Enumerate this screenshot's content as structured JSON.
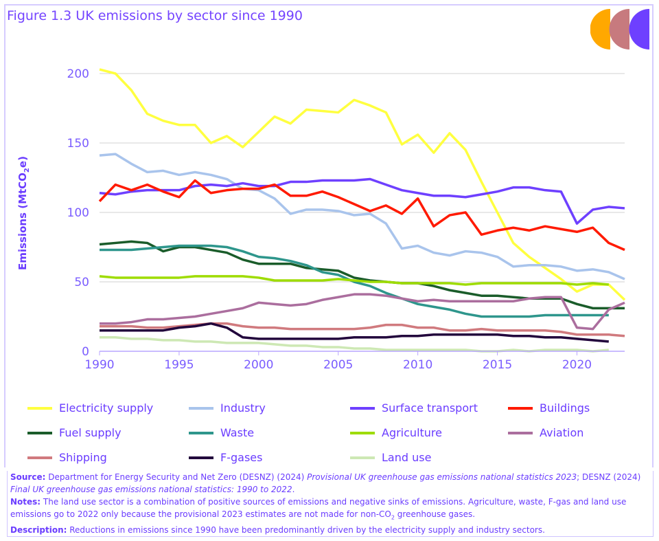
{
  "title": "Figure 1.3 UK emissions by sector since 1990",
  "logo": {
    "colors": [
      "#ffa800",
      "#c77a7e",
      "#6e40ff"
    ]
  },
  "chart_data": {
    "type": "line",
    "title": "Figure 1.3 UK emissions by sector since 1990",
    "ylabel": "Emissions (MtCO2e)",
    "ylabel_main": "Emissions (MtCO",
    "ylabel_sub": "2",
    "ylabel_end": "e)",
    "xlabel": "",
    "xlim": [
      1990,
      2023
    ],
    "ylim": [
      0,
      200
    ],
    "yticks": [
      0,
      50,
      100,
      150,
      200
    ],
    "xticks": [
      1990,
      1995,
      2000,
      2005,
      2010,
      2015,
      2020
    ],
    "grid": true,
    "legend_placement": "bottom",
    "x_start": 1990,
    "series": [
      {
        "name": "Electricity supply",
        "color": "#ffff40",
        "values": [
          203,
          200,
          188,
          171,
          166,
          163,
          163,
          150,
          155,
          147,
          158,
          169,
          164,
          174,
          173,
          172,
          181,
          177,
          172,
          149,
          156,
          143,
          157,
          145,
          122,
          100,
          78,
          68,
          60,
          52,
          43,
          48,
          48,
          37
        ]
      },
      {
        "name": "Industry",
        "color": "#a9c4ec",
        "values": [
          141,
          142,
          135,
          129,
          130,
          127,
          129,
          127,
          124,
          117,
          116,
          110,
          99,
          102,
          102,
          101,
          98,
          99,
          92,
          74,
          76,
          71,
          69,
          72,
          71,
          68,
          61,
          62,
          62,
          61,
          58,
          59,
          57,
          52
        ]
      },
      {
        "name": "Surface transport",
        "color": "#6e40ff",
        "values": [
          114,
          113,
          115,
          116,
          116,
          116,
          119,
          120,
          119,
          121,
          119,
          119,
          122,
          122,
          123,
          123,
          123,
          124,
          120,
          116,
          114,
          112,
          112,
          111,
          113,
          115,
          118,
          118,
          116,
          115,
          92,
          102,
          104,
          103
        ]
      },
      {
        "name": "Buildings",
        "color": "#ff1a00",
        "values": [
          108,
          120,
          116,
          120,
          115,
          111,
          123,
          114,
          116,
          117,
          117,
          120,
          112,
          112,
          115,
          111,
          106,
          101,
          105,
          99,
          110,
          90,
          98,
          100,
          84,
          87,
          89,
          87,
          90,
          88,
          86,
          89,
          78,
          73
        ]
      },
      {
        "name": "Fuel supply",
        "color": "#1a5c2a",
        "values": [
          77,
          78,
          79,
          78,
          72,
          75,
          75,
          73,
          71,
          66,
          63,
          63,
          63,
          60,
          59,
          58,
          53,
          51,
          50,
          49,
          49,
          47,
          44,
          42,
          40,
          40,
          39,
          38,
          38,
          38,
          34,
          31,
          31,
          31
        ]
      },
      {
        "name": "Waste",
        "color": "#2e968c",
        "values": [
          73,
          73,
          73,
          74,
          75,
          76,
          76,
          76,
          75,
          72,
          68,
          67,
          65,
          62,
          57,
          55,
          50,
          47,
          42,
          38,
          34,
          32,
          30,
          27,
          25,
          25,
          25,
          25,
          26,
          26,
          26,
          26,
          26
        ]
      },
      {
        "name": "Agriculture",
        "color": "#9edc00",
        "values": [
          54,
          53,
          53,
          53,
          53,
          53,
          54,
          54,
          54,
          54,
          53,
          51,
          51,
          51,
          51,
          52,
          51,
          50,
          50,
          49,
          49,
          49,
          49,
          48,
          49,
          49,
          49,
          49,
          49,
          49,
          48,
          49,
          48
        ]
      },
      {
        "name": "Aviation",
        "color": "#ab6e9e",
        "values": [
          20,
          20,
          21,
          23,
          23,
          24,
          25,
          27,
          29,
          31,
          35,
          34,
          33,
          34,
          37,
          39,
          41,
          41,
          40,
          38,
          36,
          37,
          36,
          36,
          36,
          36,
          36,
          38,
          39,
          39,
          17,
          16,
          30,
          35
        ]
      },
      {
        "name": "Shipping",
        "color": "#d07a7e",
        "values": [
          18,
          18,
          18,
          17,
          17,
          18,
          19,
          20,
          20,
          18,
          17,
          17,
          16,
          16,
          16,
          16,
          16,
          17,
          19,
          19,
          17,
          17,
          15,
          15,
          16,
          15,
          15,
          15,
          15,
          14,
          12,
          12,
          12,
          11
        ]
      },
      {
        "name": "F-gases",
        "color": "#22053c",
        "values": [
          15,
          15,
          15,
          15,
          15,
          17,
          18,
          20,
          17,
          10,
          9,
          9,
          9,
          9,
          9,
          9,
          10,
          10,
          10,
          11,
          11,
          12,
          12,
          12,
          12,
          12,
          11,
          11,
          10,
          10,
          9,
          8,
          7
        ]
      },
      {
        "name": "Land use",
        "color": "#cde8b4",
        "values": [
          10,
          10,
          9,
          9,
          8,
          8,
          7,
          7,
          6,
          6,
          6,
          5,
          4,
          4,
          3,
          3,
          2,
          2,
          1,
          1,
          1,
          1,
          1,
          1,
          0,
          0,
          1,
          0,
          1,
          1,
          1,
          0,
          1
        ]
      }
    ]
  },
  "footer": {
    "source_label": "Source:",
    "source_text1": " Department for Energy Security and Net Zero (DESNZ) (2024) ",
    "source_italic1": "Provisional UK greenhouse gas emissions national statistics 2023",
    "source_text2": "; DESNZ (2024) ",
    "source_italic2": "Final UK greenhouse gas emissions national statistics: 1990 to 2022",
    "source_text3": ".",
    "notes_label": "Notes:",
    "notes_text1": " The land use sector is a combination of positive sources of emissions and negative sinks of emissions. Agriculture, waste, F-gas and land use emissions go to 2022 only because the provisional 2023 estimates are not made for non-CO",
    "notes_sub": "2",
    "notes_text2": " greenhouse gases.",
    "description_label": "Description:",
    "description_text": " Reductions in emissions since 1990 have been predominantly driven by the electricity supply and industry sectors."
  }
}
